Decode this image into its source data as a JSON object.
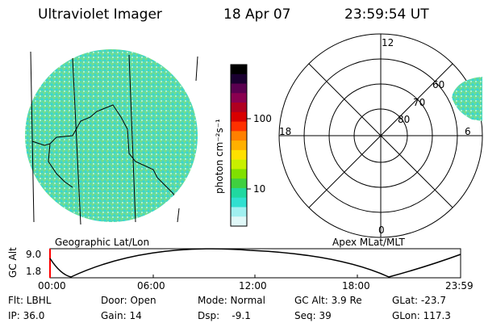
{
  "header": {
    "instrument": "Ultraviolet Imager",
    "date": "18 Apr 07",
    "time": "23:59:54 UT"
  },
  "colorbar": {
    "unit_label": "photon cm⁻²s⁻¹",
    "ticks": [
      "100",
      "10"
    ],
    "colors": [
      "#000000",
      "#1a0030",
      "#5a0050",
      "#8a0050",
      "#b00020",
      "#d80000",
      "#ff3000",
      "#ff8000",
      "#ffb000",
      "#ffe000",
      "#c8f000",
      "#80e000",
      "#40d040",
      "#20d8a0",
      "#30e0d0",
      "#a0f0f0",
      "#e0f8f8"
    ]
  },
  "geo_panel": {
    "label": "Geographic Lat/Lon"
  },
  "polar_panel": {
    "label": "Apex MLat/MLT",
    "mlt_labels": [
      "12",
      "18",
      "6",
      "0"
    ],
    "lat_labels": [
      "60",
      "70",
      "80"
    ]
  },
  "altitude_plot": {
    "ylabel": "GC Alt",
    "yticks": [
      "9.0",
      "1.8"
    ],
    "xticks": [
      "00:00",
      "06:00",
      "12:00",
      "18:00",
      "23:59"
    ]
  },
  "status": {
    "row1": [
      "Flt: LBHL",
      "Door: Open",
      "Mode: Normal",
      "GC Alt: 3.9 Re",
      "GLat: -23.7"
    ],
    "row2": [
      "IP: 36.0",
      "Gain: 14",
      "Dsp:    -9.1",
      "Seq: 39",
      "GLon: 117.3"
    ]
  }
}
